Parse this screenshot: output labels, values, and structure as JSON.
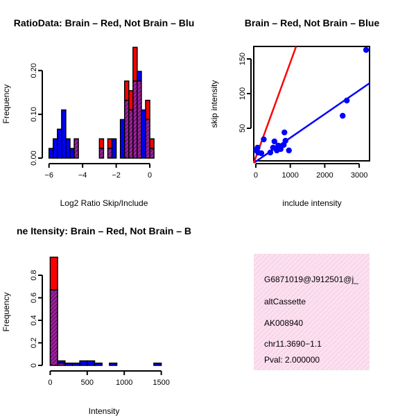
{
  "colors": {
    "red": "#ff0000",
    "blue": "#0000ff",
    "overlap": "#a020a0",
    "blue_line": "#0000ff",
    "red_line": "#ff0000",
    "info_bg": "#fbe0ef",
    "pval": "#b00000"
  },
  "chart_data": [
    {
      "type": "bar",
      "subtype": "overlaid-histogram",
      "title": "RatioData: Brain – Red, Not Brain – Blu",
      "xlabel": "Log2 Ratio Skip/Include",
      "ylabel": "Frequency",
      "xlim": [
        -6.4,
        0.7
      ],
      "ylim": [
        0,
        0.255
      ],
      "xticks": [
        -6,
        -4,
        -2,
        0
      ],
      "xtick_labels": [
        "−6",
        "−4",
        "−2",
        "0"
      ],
      "yticks": [
        0.0,
        0.1,
        0.2
      ],
      "ytick_labels": [
        "0.00",
        "0.10",
        "0.20"
      ],
      "bin_width": 0.25,
      "series": [
        {
          "name": "Not Brain",
          "color": "blue",
          "bins": [
            [
              -6.0,
              0.022
            ],
            [
              -5.75,
              0.044
            ],
            [
              -5.5,
              0.066
            ],
            [
              -5.25,
              0.11
            ],
            [
              -5.0,
              0.044
            ],
            [
              -4.75,
              0.022
            ],
            [
              -4.5,
              0.044
            ],
            [
              -3.0,
              0.022
            ],
            [
              -2.5,
              0.022
            ],
            [
              -2.25,
              0.044
            ],
            [
              -1.75,
              0.088
            ],
            [
              -1.5,
              0.132
            ],
            [
              -1.25,
              0.11
            ],
            [
              -1.0,
              0.176
            ],
            [
              -0.75,
              0.198
            ],
            [
              -0.5,
              0.11
            ],
            [
              -0.25,
              0.088
            ],
            [
              0.0,
              0.022
            ]
          ]
        },
        {
          "name": "Brain",
          "color": "red",
          "bins": [
            [
              -4.5,
              0.044
            ],
            [
              -3.0,
              0.044
            ],
            [
              -2.5,
              0.044
            ],
            [
              -1.5,
              0.176
            ],
            [
              -1.25,
              0.154
            ],
            [
              -1.0,
              0.253
            ],
            [
              -0.75,
              0.176
            ],
            [
              -0.25,
              0.132
            ],
            [
              0.0,
              0.044
            ]
          ]
        }
      ]
    },
    {
      "type": "scatter",
      "title": "Brain – Red, Not Brain – Blue",
      "xlabel": "include intensity",
      "ylabel": "skip intensity",
      "xlim": [
        -60,
        3300
      ],
      "ylim": [
        3,
        168
      ],
      "xticks": [
        0,
        1000,
        2000,
        3000
      ],
      "yticks": [
        50,
        100,
        150
      ],
      "points": [
        {
          "x": 20,
          "y": 18
        },
        {
          "x": 50,
          "y": 22
        },
        {
          "x": 70,
          "y": 15
        },
        {
          "x": 160,
          "y": 14
        },
        {
          "x": 230,
          "y": 34
        },
        {
          "x": 420,
          "y": 15
        },
        {
          "x": 500,
          "y": 22
        },
        {
          "x": 540,
          "y": 31
        },
        {
          "x": 610,
          "y": 18
        },
        {
          "x": 650,
          "y": 25
        },
        {
          "x": 720,
          "y": 20
        },
        {
          "x": 810,
          "y": 26
        },
        {
          "x": 830,
          "y": 44
        },
        {
          "x": 860,
          "y": 32
        },
        {
          "x": 960,
          "y": 18
        },
        {
          "x": 2520,
          "y": 68
        },
        {
          "x": 2640,
          "y": 90
        },
        {
          "x": 3200,
          "y": 163
        }
      ],
      "lines": [
        {
          "name": "Not Brain fit",
          "color": "blue",
          "x": [
            -60,
            3300
          ],
          "y": [
            0,
            115
          ]
        },
        {
          "name": "Brain fit",
          "color": "red",
          "x": [
            -60,
            1170
          ],
          "y": [
            0,
            168
          ]
        }
      ]
    },
    {
      "type": "bar",
      "subtype": "overlaid-histogram",
      "title": "ne Itensity: Brain – Red, Not Brain – B",
      "xlabel": "Intensity",
      "ylabel": "Frequency",
      "xlim": [
        -60,
        1560
      ],
      "ylim": [
        0,
        0.96
      ],
      "xticks": [
        0,
        500,
        1000,
        1500
      ],
      "yticks": [
        0.0,
        0.2,
        0.4,
        0.6,
        0.8
      ],
      "bin_width": 100,
      "series": [
        {
          "name": "Not Brain",
          "color": "blue",
          "bins": [
            [
              0,
              0.67
            ],
            [
              100,
              0.04
            ],
            [
              200,
              0.02
            ],
            [
              300,
              0.02
            ],
            [
              400,
              0.04
            ],
            [
              500,
              0.04
            ],
            [
              600,
              0.02
            ],
            [
              800,
              0.02
            ],
            [
              1400,
              0.02
            ]
          ]
        },
        {
          "name": "Brain",
          "color": "red",
          "bins": [
            [
              0,
              0.96
            ],
            [
              100,
              0.02
            ]
          ]
        }
      ]
    }
  ],
  "info": {
    "id": "G6871019@J912501@j_",
    "event_type": "altCassette",
    "accession": "AK008940",
    "locus": "chr11.3690−1.1",
    "pval": "Pval: 2.000000"
  }
}
